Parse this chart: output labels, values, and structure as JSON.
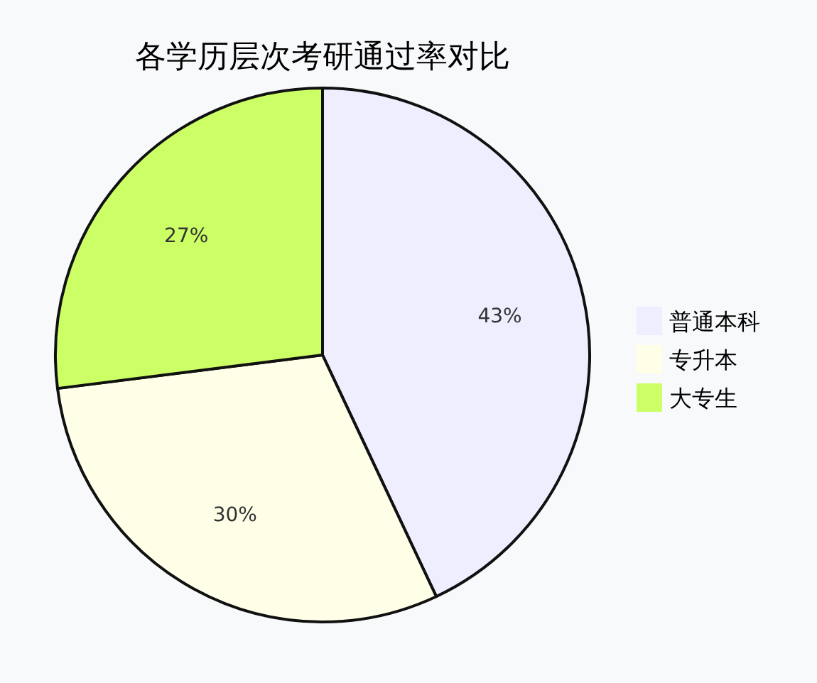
{
  "chart_data": {
    "type": "pie",
    "title": "各学历层次考研通过率对比",
    "categories": [
      "普通本科",
      "专升本",
      "大专生"
    ],
    "values": [
      43,
      30,
      27
    ],
    "colors": [
      "#eeeeff",
      "#ffffe8",
      "#ccff66"
    ],
    "value_labels": [
      "43%",
      "30%",
      "27%"
    ],
    "legend": "right"
  }
}
